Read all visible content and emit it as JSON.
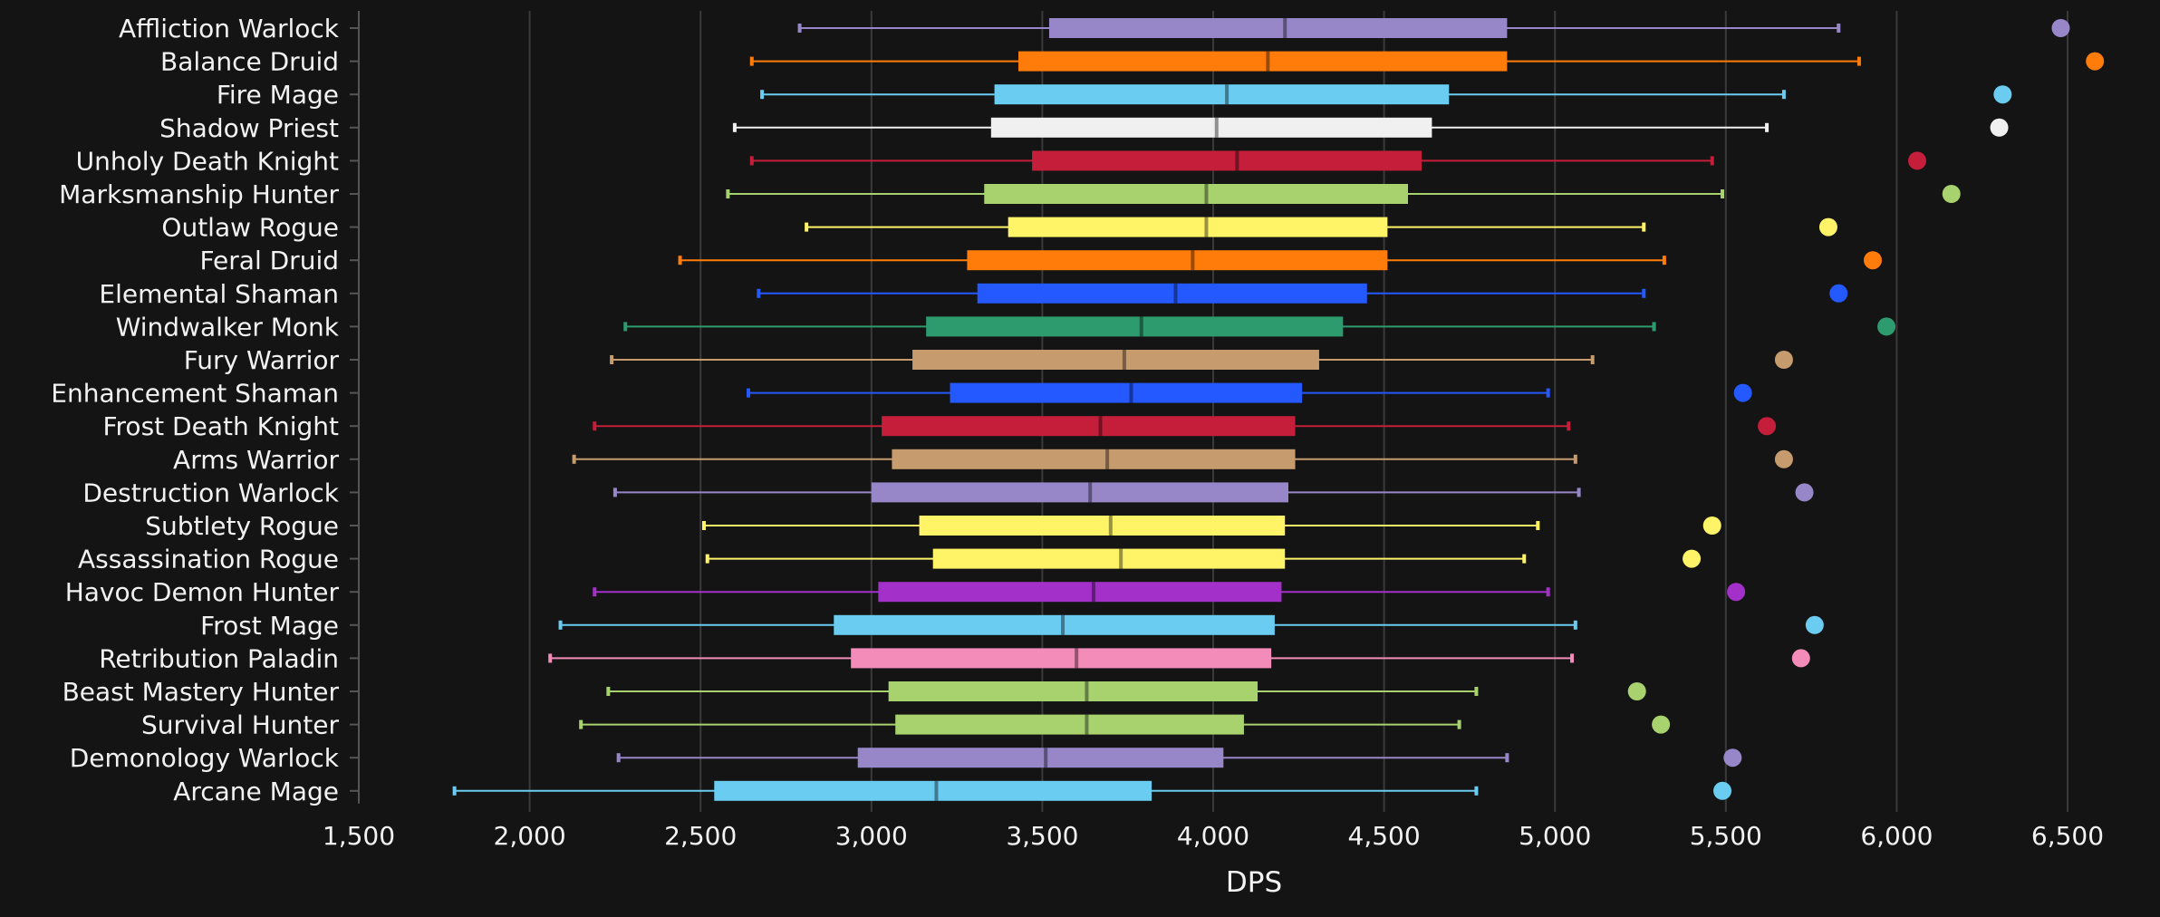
{
  "chart_data": {
    "type": "box",
    "xlabel": "DPS",
    "xlim": [
      1500,
      6500
    ],
    "xticks": [
      1500,
      2000,
      2500,
      3000,
      3500,
      4000,
      4500,
      5000,
      5500,
      6000,
      6500
    ],
    "xtick_labels": [
      "1,500",
      "2,000",
      "2,500",
      "3,000",
      "3,500",
      "4,000",
      "4,500",
      "5,000",
      "5,500",
      "6,000",
      "6,500"
    ],
    "grid": "vertical",
    "series": [
      {
        "name": "Affliction Warlock",
        "color": "#9787c9",
        "min": 2790,
        "q1": 3520,
        "median": 4210,
        "q3": 4860,
        "max": 5830,
        "outlier": 6480
      },
      {
        "name": "Balance Druid",
        "color": "#ff7c0a",
        "min": 2650,
        "q1": 3430,
        "median": 4160,
        "q3": 4860,
        "max": 5890,
        "outlier": 6580
      },
      {
        "name": "Fire Mage",
        "color": "#69ccf0",
        "min": 2680,
        "q1": 3360,
        "median": 4040,
        "q3": 4690,
        "max": 5670,
        "outlier": 6310
      },
      {
        "name": "Shadow Priest",
        "color": "#f0f0f0",
        "min": 2600,
        "q1": 3350,
        "median": 4010,
        "q3": 4640,
        "max": 5620,
        "outlier": 6300
      },
      {
        "name": "Unholy Death Knight",
        "color": "#c41e3a",
        "min": 2650,
        "q1": 3470,
        "median": 4070,
        "q3": 4610,
        "max": 5460,
        "outlier": 6060
      },
      {
        "name": "Marksmanship Hunter",
        "color": "#a8d26e",
        "min": 2580,
        "q1": 3330,
        "median": 3980,
        "q3": 4570,
        "max": 5490,
        "outlier": 6160
      },
      {
        "name": "Outlaw Rogue",
        "color": "#fff468",
        "min": 2810,
        "q1": 3400,
        "median": 3980,
        "q3": 4510,
        "max": 5260,
        "outlier": 5800
      },
      {
        "name": "Feral Druid",
        "color": "#ff7c0a",
        "min": 2440,
        "q1": 3280,
        "median": 3940,
        "q3": 4510,
        "max": 5320,
        "outlier": 5930
      },
      {
        "name": "Elemental Shaman",
        "color": "#2459ff",
        "min": 2670,
        "q1": 3310,
        "median": 3890,
        "q3": 4450,
        "max": 5260,
        "outlier": 5830
      },
      {
        "name": "Windwalker Monk",
        "color": "#2d9b6e",
        "min": 2280,
        "q1": 3160,
        "median": 3790,
        "q3": 4380,
        "max": 5290,
        "outlier": 5970
      },
      {
        "name": "Fury Warrior",
        "color": "#c69b6d",
        "min": 2240,
        "q1": 3120,
        "median": 3740,
        "q3": 4310,
        "max": 5110,
        "outlier": 5670
      },
      {
        "name": "Enhancement Shaman",
        "color": "#2459ff",
        "min": 2640,
        "q1": 3230,
        "median": 3760,
        "q3": 4260,
        "max": 4980,
        "outlier": 5550
      },
      {
        "name": "Frost Death Knight",
        "color": "#c41e3a",
        "min": 2190,
        "q1": 3030,
        "median": 3670,
        "q3": 4240,
        "max": 5040,
        "outlier": 5620
      },
      {
        "name": "Arms Warrior",
        "color": "#c69b6d",
        "min": 2130,
        "q1": 3060,
        "median": 3690,
        "q3": 4240,
        "max": 5060,
        "outlier": 5670
      },
      {
        "name": "Destruction Warlock",
        "color": "#9787c9",
        "min": 2250,
        "q1": 3000,
        "median": 3640,
        "q3": 4220,
        "max": 5070,
        "outlier": 5730
      },
      {
        "name": "Subtlety Rogue",
        "color": "#fff468",
        "min": 2510,
        "q1": 3140,
        "median": 3700,
        "q3": 4210,
        "max": 4950,
        "outlier": 5460
      },
      {
        "name": "Assassination Rogue",
        "color": "#fff468",
        "min": 2520,
        "q1": 3180,
        "median": 3730,
        "q3": 4210,
        "max": 4910,
        "outlier": 5400
      },
      {
        "name": "Havoc Demon Hunter",
        "color": "#a330c9",
        "min": 2190,
        "q1": 3020,
        "median": 3650,
        "q3": 4200,
        "max": 4980,
        "outlier": 5530
      },
      {
        "name": "Frost Mage",
        "color": "#69ccf0",
        "min": 2090,
        "q1": 2890,
        "median": 3560,
        "q3": 4180,
        "max": 5060,
        "outlier": 5760
      },
      {
        "name": "Retribution Paladin",
        "color": "#f48cba",
        "min": 2060,
        "q1": 2940,
        "median": 3600,
        "q3": 4170,
        "max": 5050,
        "outlier": 5720
      },
      {
        "name": "Beast Mastery Hunter",
        "color": "#a8d26e",
        "min": 2230,
        "q1": 3050,
        "median": 3630,
        "q3": 4130,
        "max": 4770,
        "outlier": 5240
      },
      {
        "name": "Survival Hunter",
        "color": "#a8d26e",
        "min": 2150,
        "q1": 3070,
        "median": 3630,
        "q3": 4090,
        "max": 4720,
        "outlier": 5310
      },
      {
        "name": "Demonology Warlock",
        "color": "#9787c9",
        "min": 2260,
        "q1": 2960,
        "median": 3510,
        "q3": 4030,
        "max": 4860,
        "outlier": 5520
      },
      {
        "name": "Arcane Mage",
        "color": "#69ccf0",
        "min": 1780,
        "q1": 2540,
        "median": 3190,
        "q3": 3820,
        "max": 4770,
        "outlier": 5490
      }
    ]
  }
}
